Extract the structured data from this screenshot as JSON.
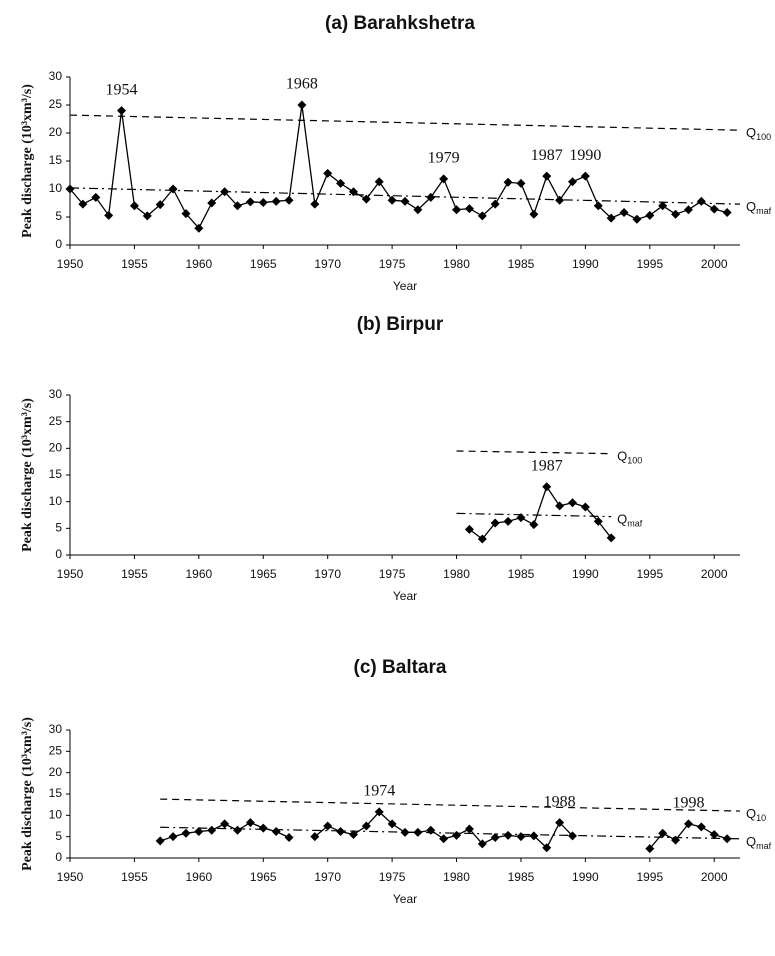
{
  "chart_data": [
    {
      "type": "line",
      "title": "(a) Barahkshetra",
      "x_label": "Year",
      "y_label": "Peak discharge (10³xm³/s)",
      "x": [
        1950,
        1951,
        1952,
        1953,
        1954,
        1955,
        1956,
        1957,
        1958,
        1959,
        1960,
        1961,
        1962,
        1963,
        1964,
        1965,
        1966,
        1967,
        1968,
        1969,
        1970,
        1971,
        1972,
        1973,
        1974,
        1975,
        1976,
        1977,
        1978,
        1979,
        1980,
        1981,
        1982,
        1983,
        1984,
        1985,
        1986,
        1987,
        1988,
        1989,
        1990,
        1991,
        1992,
        1993,
        1994,
        1995,
        1996,
        1997,
        1998,
        1999,
        2000,
        2001
      ],
      "values": [
        10,
        7.3,
        8.5,
        5.3,
        24,
        7,
        5.2,
        7.2,
        10,
        5.6,
        3,
        7.5,
        9.5,
        7,
        7.7,
        7.6,
        7.8,
        8,
        25,
        7.3,
        12.8,
        11,
        9.5,
        8.2,
        11.3,
        8,
        7.8,
        6.3,
        8.5,
        11.8,
        6.3,
        6.5,
        5.2,
        7.3,
        11.2,
        11,
        5.5,
        12.3,
        8,
        11.3,
        12.3,
        7,
        4.8,
        5.8,
        4.6,
        5.3,
        7,
        5.5,
        6.3,
        7.8,
        6.4,
        5.8
      ],
      "color": "#000000",
      "xlim": [
        1950,
        2002
      ],
      "xticks": [
        1950,
        1955,
        1960,
        1965,
        1970,
        1975,
        1980,
        1985,
        1990,
        1995,
        2000
      ],
      "ylim": [
        0,
        30
      ],
      "yticks": [
        0,
        5,
        10,
        15,
        20,
        25,
        30
      ],
      "reference_lines": [
        {
          "label": "Q",
          "subscript": "100",
          "style": "dashed",
          "x": [
            1950,
            2002
          ],
          "values": [
            23.2,
            20.5
          ]
        },
        {
          "label": "Q",
          "subscript": "maf",
          "style": "dashdot",
          "x": [
            1950,
            2002
          ],
          "values": [
            10.2,
            7.3
          ]
        }
      ],
      "annotations": [
        {
          "text": "1954",
          "x": 1954
        },
        {
          "text": "1968",
          "x": 1968
        },
        {
          "text": "1979",
          "x": 1979
        },
        {
          "text": "1987",
          "x": 1987
        },
        {
          "text": "1990",
          "x": 1990
        }
      ]
    },
    {
      "type": "line",
      "title": "(b) Birpur",
      "x_label": "Year",
      "y_label": "Peak discharge (10³xm³/s)",
      "x": [
        1981,
        1982,
        1983,
        1984,
        1985,
        1986,
        1987,
        1988,
        1989,
        1990,
        1991,
        1992
      ],
      "values": [
        4.8,
        3,
        6,
        6.3,
        7,
        5.7,
        12.8,
        9.2,
        9.8,
        9,
        6.3,
        3.2
      ],
      "color": "#000000",
      "xlim": [
        1950,
        2002
      ],
      "xticks": [
        1950,
        1955,
        1960,
        1965,
        1970,
        1975,
        1980,
        1985,
        1990,
        1995,
        2000
      ],
      "ylim": [
        0,
        30
      ],
      "yticks": [
        0,
        5,
        10,
        15,
        20,
        25,
        30
      ],
      "reference_lines": [
        {
          "label": "Q",
          "subscript": "100",
          "style": "dashed",
          "x": [
            1980,
            1992
          ],
          "values": [
            19.5,
            19
          ]
        },
        {
          "label": "Q",
          "subscript": "maf",
          "style": "dashdot",
          "x": [
            1980,
            1992
          ],
          "values": [
            7.8,
            7.2
          ]
        }
      ],
      "annotations": [
        {
          "text": "1987",
          "x": 1987
        }
      ]
    },
    {
      "type": "line",
      "title": "(c) Baltara",
      "x_label": "Year",
      "y_label": "Peak discharge (10³xm³/s)",
      "x": [
        1957,
        1958,
        1959,
        1960,
        1961,
        1962,
        1963,
        1964,
        1965,
        1966,
        1967,
        1968,
        1969,
        1970,
        1971,
        1972,
        1973,
        1974,
        1975,
        1976,
        1977,
        1978,
        1979,
        1980,
        1981,
        1982,
        1983,
        1984,
        1985,
        1986,
        1987,
        1988,
        1989,
        1990,
        1991,
        1992,
        1993,
        1994,
        1995,
        1996,
        1997,
        1998,
        1999,
        2000,
        2001
      ],
      "values": [
        4,
        5,
        5.8,
        6.2,
        6.5,
        8,
        6.5,
        8.3,
        7,
        6.2,
        4.8,
        null,
        5,
        7.5,
        6.2,
        5.5,
        7.5,
        10.8,
        8,
        6,
        6,
        6.5,
        4.5,
        5.3,
        6.8,
        3.3,
        4.8,
        5.3,
        5,
        5.2,
        2.4,
        8.3,
        5.2,
        null,
        null,
        null,
        null,
        null,
        2.2,
        5.8,
        4.2,
        8,
        7.3,
        5.5,
        4.5
      ],
      "color": "#000000",
      "xlim": [
        1950,
        2002
      ],
      "xticks": [
        1950,
        1955,
        1960,
        1965,
        1970,
        1975,
        1980,
        1985,
        1990,
        1995,
        2000
      ],
      "ylim": [
        0,
        30
      ],
      "yticks": [
        0,
        5,
        10,
        15,
        20,
        25,
        30
      ],
      "reference_lines": [
        {
          "label": "Q",
          "subscript": "10",
          "style": "dashed",
          "x": [
            1957,
            2002
          ],
          "values": [
            13.8,
            11
          ]
        },
        {
          "label": "Q",
          "subscript": "maf",
          "style": "dashdot",
          "x": [
            1957,
            2002
          ],
          "values": [
            7.2,
            4.5
          ]
        }
      ],
      "annotations": [
        {
          "text": "1974",
          "x": 1974
        },
        {
          "text": "1988",
          "x": 1988
        },
        {
          "text": "1998",
          "x": 1998
        }
      ]
    }
  ]
}
